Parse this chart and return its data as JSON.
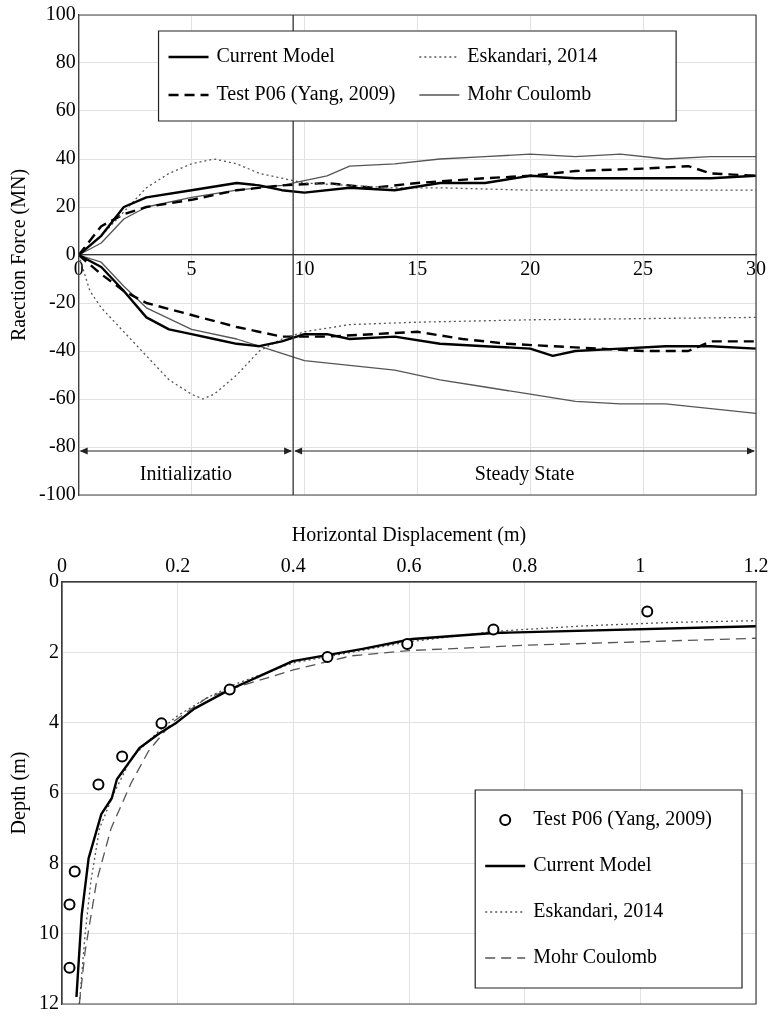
{
  "chart_data": [
    {
      "type": "line",
      "ylabel": "Raection Force (MN)",
      "xlim": [
        0,
        30
      ],
      "xticks": [
        0,
        5,
        10,
        15,
        20,
        25,
        30
      ],
      "ylim": [
        -100,
        100
      ],
      "yticks": [
        -100,
        -80,
        -60,
        -40,
        -20,
        0,
        20,
        40,
        60,
        80,
        100
      ],
      "grid": true,
      "legend": "top",
      "marker": "none",
      "series": [
        {
          "name": "Current Model",
          "color": "#000000",
          "line_style": "solid",
          "x": [
            0,
            1,
            2,
            3,
            5,
            7,
            8,
            9,
            10,
            12,
            14,
            16,
            18,
            20,
            22,
            25,
            28,
            30
          ],
          "values": [
            0,
            8,
            20,
            24,
            27,
            30,
            29,
            27,
            26,
            28,
            27,
            30,
            30,
            33,
            32,
            32,
            32,
            33
          ]
        },
        {
          "name": "Eskandari, 2014",
          "color": "#555555",
          "line_style": "dotted",
          "x": [
            0,
            1,
            2,
            3,
            4,
            5,
            6,
            7,
            8,
            10,
            12,
            14,
            16,
            20,
            25,
            30
          ],
          "values": [
            0,
            8,
            18,
            28,
            34,
            38,
            40,
            38,
            34,
            30,
            29,
            28,
            28,
            27,
            27,
            27
          ]
        },
        {
          "name": "Test P06 (Yang, 2009)",
          "color": "#000000",
          "line_style": "dashed",
          "x": [
            0,
            1,
            2,
            3,
            5,
            7,
            9,
            11,
            13,
            15,
            18,
            20,
            22,
            25,
            27,
            28,
            30
          ],
          "values": [
            0,
            12,
            17,
            20,
            23,
            27,
            29,
            30,
            28,
            30,
            32,
            33,
            35,
            36,
            37,
            34,
            33
          ]
        },
        {
          "name": "Mohr Coulomb",
          "color": "#555555",
          "line_style": "solid",
          "x": [
            0,
            1,
            2,
            3,
            5,
            7,
            9,
            10,
            11,
            12,
            14,
            16,
            18,
            20,
            22,
            24,
            26,
            28,
            30
          ],
          "values": [
            0,
            5,
            15,
            20,
            24,
            27,
            29,
            31,
            33,
            37,
            38,
            40,
            41,
            42,
            41,
            42,
            40,
            41,
            41
          ]
        },
        {
          "color": "#000000",
          "line_style": "solid",
          "x": [
            0,
            1,
            2,
            3,
            4,
            5,
            6,
            7,
            8,
            9,
            10,
            11,
            12,
            14,
            16,
            18,
            20,
            21,
            22,
            24,
            26,
            28,
            30
          ],
          "values": [
            0,
            -5,
            -15,
            -26,
            -31,
            -33,
            -35,
            -37,
            -38,
            -36,
            -33,
            -33,
            -35,
            -34,
            -37,
            -38,
            -39,
            -42,
            -40,
            -39,
            -38,
            -38,
            -39
          ]
        },
        {
          "color": "#555555",
          "line_style": "dotted",
          "x": [
            0,
            0.5,
            1,
            2,
            3,
            4,
            5,
            5.5,
            6,
            7,
            8,
            9,
            10,
            12,
            15,
            20,
            30
          ],
          "values": [
            0,
            -15,
            -22,
            -32,
            -42,
            -52,
            -58,
            -60,
            -58,
            -50,
            -40,
            -35,
            -32,
            -29,
            -28,
            -27,
            -26
          ]
        },
        {
          "color": "#000000",
          "line_style": "dashed",
          "x": [
            0,
            1,
            2,
            3,
            5,
            7,
            9,
            11,
            13,
            15,
            17,
            19,
            21,
            23,
            25,
            27,
            28,
            30
          ],
          "values": [
            0,
            -8,
            -15,
            -20,
            -25,
            -30,
            -34,
            -34,
            -33,
            -32,
            -35,
            -37,
            -38,
            -39,
            -40,
            -40,
            -36,
            -36
          ]
        },
        {
          "color": "#555555",
          "line_style": "solid",
          "x": [
            0,
            1,
            2,
            3,
            5,
            7,
            8,
            9,
            10,
            12,
            14,
            16,
            18,
            20,
            22,
            24,
            26,
            28,
            30
          ],
          "values": [
            0,
            -3,
            -13,
            -22,
            -31,
            -35,
            -38,
            -41,
            -44,
            -46,
            -48,
            -52,
            -55,
            -58,
            -61,
            -62,
            -62,
            -64,
            -66
          ]
        }
      ],
      "ref_lines": [
        {
          "axis": "x",
          "value": 9.5
        }
      ],
      "annotations": [
        "Initializatio",
        "Steady State"
      ]
    },
    {
      "type": "line",
      "xlabel": "Horizontal Displacement (m)",
      "ylabel": "Depth (m)",
      "xlim": [
        0,
        1.2
      ],
      "xticks": [
        0,
        0.2,
        0.4,
        0.6,
        0.8,
        1,
        1.2
      ],
      "ylim": [
        12,
        0
      ],
      "yticks": [
        0,
        2,
        4,
        6,
        8,
        10,
        12
      ],
      "grid": true,
      "legend": "bottom right",
      "series": [
        {
          "name": "Test P06 (Yang, 2009)",
          "type": "scatter",
          "marker": "circle",
          "color": "#000000",
          "x": [
            0.013,
            0.013,
            0.022,
            0.063,
            0.104,
            0.172,
            0.29,
            0.459,
            0.597,
            0.746,
            1.012
          ],
          "values": [
            10.97,
            9.17,
            8.23,
            5.76,
            4.96,
            4.02,
            3.06,
            2.13,
            1.76,
            1.35,
            0.84
          ]
        },
        {
          "name": "Current Model",
          "color": "#000000",
          "line_style": "solid",
          "marker": "none",
          "x": [
            0.025,
            0.034,
            0.046,
            0.068,
            0.086,
            0.095,
            0.134,
            0.168,
            0.198,
            0.229,
            0.29,
            0.399,
            0.52,
            0.606,
            0.746,
            1.2
          ],
          "values": [
            11.8,
            9.47,
            7.86,
            6.6,
            6.15,
            5.61,
            4.72,
            4.31,
            4.0,
            3.6,
            3.06,
            2.25,
            1.9,
            1.62,
            1.45,
            1.26
          ]
        },
        {
          "name": "Eskandari, 2014",
          "color": "#555555",
          "line_style": "dotted",
          "marker": "none",
          "x": [
            0.03,
            0.04,
            0.05,
            0.065,
            0.09,
            0.12,
            0.17,
            0.2,
            0.25,
            0.3,
            0.4,
            0.5,
            0.6,
            0.75,
            0.9,
            1.05,
            1.2
          ],
          "values": [
            12,
            10,
            8.5,
            7,
            6,
            5,
            4.2,
            3.8,
            3.3,
            2.9,
            2.3,
            2.0,
            1.7,
            1.4,
            1.25,
            1.15,
            1.1
          ]
        },
        {
          "name": "Mohr Coulomb",
          "color": "#555555",
          "line_style": "dashed",
          "marker": "none",
          "x": [
            0.03,
            0.04,
            0.06,
            0.085,
            0.12,
            0.15,
            0.19,
            0.25,
            0.3,
            0.4,
            0.5,
            0.6,
            0.8,
            1.0,
            1.2
          ],
          "values": [
            12,
            10.5,
            8.5,
            7,
            5.7,
            4.8,
            4.0,
            3.3,
            3.0,
            2.5,
            2.1,
            1.95,
            1.8,
            1.7,
            1.6
          ]
        }
      ]
    }
  ]
}
